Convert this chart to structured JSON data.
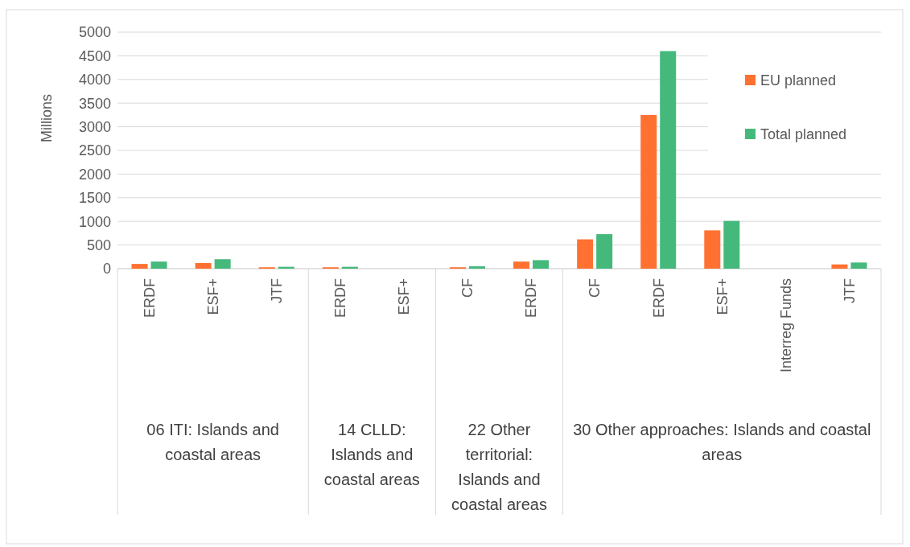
{
  "chart_data": {
    "type": "bar",
    "ylabel": "Millions",
    "categories": [
      "ERDF",
      "ESF+",
      "JTF",
      "ERDF",
      "ESF+",
      "CF",
      "ERDF",
      "CF",
      "ERDF",
      "ESF+",
      "Interreg Funds",
      "JTF"
    ],
    "series": [
      {
        "name": "EU planned",
        "color": "#ff7131",
        "values": [
          100,
          120,
          30,
          30,
          0,
          30,
          150,
          620,
          3250,
          810,
          0,
          90
        ]
      },
      {
        "name": "Total planned",
        "color": "#45b97c",
        "values": [
          150,
          200,
          40,
          40,
          0,
          50,
          180,
          730,
          4600,
          1010,
          0,
          130
        ]
      }
    ],
    "ylim": [
      0,
      5000
    ],
    "yticks": [
      0,
      500,
      1000,
      1500,
      2000,
      2500,
      3000,
      3500,
      4000,
      4500,
      5000
    ],
    "grid": "y",
    "legend": "top right",
    "annotations": [
      "06 ITI: Islands and coastal areas",
      "14 CLLD: Islands and coastal areas",
      "22 Other territorial: Islands and coastal areas",
      "30 Other approaches: Islands and coastal areas"
    ]
  }
}
